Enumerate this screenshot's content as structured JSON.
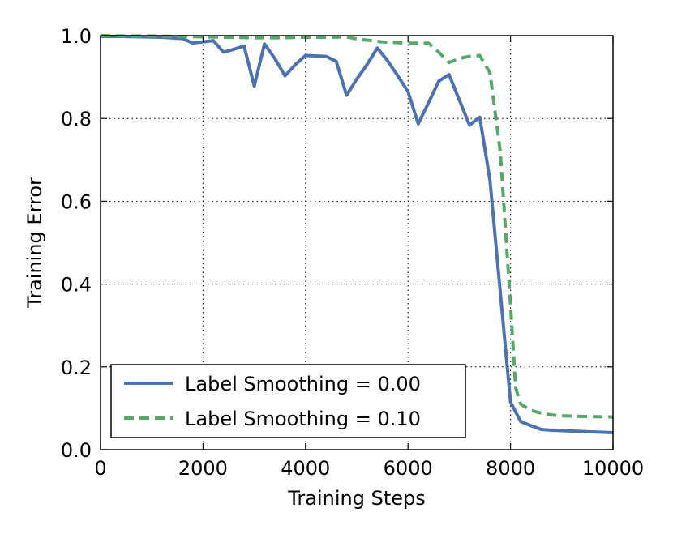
{
  "chart_data": {
    "type": "line",
    "title": "",
    "xlabel": "Training Steps",
    "ylabel": "Training Error",
    "xlim": [
      0,
      10000
    ],
    "ylim": [
      0.0,
      1.0
    ],
    "xticks": [
      0,
      2000,
      4000,
      6000,
      8000,
      10000
    ],
    "xtick_labels": [
      "0",
      "2000",
      "4000",
      "6000",
      "8000",
      "10000"
    ],
    "yticks": [
      0.0,
      0.2,
      0.4,
      0.6,
      0.8,
      1.0
    ],
    "ytick_labels": [
      "0.0",
      "0.2",
      "0.4",
      "0.6",
      "0.8",
      "1.0"
    ],
    "grid": true,
    "legend_position": "lower-left",
    "series": [
      {
        "name": "Label Smoothing = 0.00",
        "color": "#4c72b0",
        "style": "solid",
        "x": [
          0,
          400,
          800,
          1200,
          1600,
          1800,
          2000,
          2200,
          2400,
          2600,
          2800,
          3000,
          3200,
          3400,
          3600,
          3800,
          4000,
          4200,
          4400,
          4600,
          4800,
          5000,
          5200,
          5400,
          5600,
          5800,
          6000,
          6200,
          6400,
          6600,
          6800,
          7000,
          7200,
          7400,
          7600,
          7800,
          8000,
          8200,
          8400,
          8600,
          8800,
          9000,
          9200,
          9400,
          9600,
          9800,
          10000
        ],
        "values": [
          0.998,
          0.998,
          0.997,
          0.996,
          0.993,
          0.982,
          0.985,
          0.988,
          0.96,
          0.967,
          0.975,
          0.878,
          0.98,
          0.945,
          0.903,
          0.93,
          0.952,
          0.951,
          0.95,
          0.938,
          0.856,
          0.895,
          0.93,
          0.97,
          0.94,
          0.903,
          0.865,
          0.787,
          0.838,
          0.89,
          0.906,
          0.845,
          0.784,
          0.803,
          0.65,
          0.38,
          0.115,
          0.068,
          0.058,
          0.049,
          0.047,
          0.046,
          0.045,
          0.044,
          0.043,
          0.042,
          0.041
        ]
      },
      {
        "name": "Label Smoothing = 0.10",
        "color": "#55a868",
        "style": "dashed",
        "x": [
          0,
          500,
          1000,
          1500,
          2000,
          2500,
          3000,
          3500,
          4000,
          4500,
          4800,
          5000,
          5500,
          6000,
          6400,
          6600,
          6800,
          7000,
          7200,
          7400,
          7600,
          7800,
          8000,
          8100,
          8200,
          8400,
          8600,
          8800,
          9000,
          9500,
          10000
        ],
        "values": [
          1.0,
          0.999,
          0.999,
          0.998,
          0.997,
          0.996,
          0.995,
          0.995,
          0.996,
          0.996,
          0.997,
          0.992,
          0.985,
          0.982,
          0.982,
          0.96,
          0.935,
          0.945,
          0.95,
          0.952,
          0.91,
          0.72,
          0.35,
          0.15,
          0.11,
          0.095,
          0.088,
          0.084,
          0.082,
          0.08,
          0.079
        ]
      }
    ]
  }
}
